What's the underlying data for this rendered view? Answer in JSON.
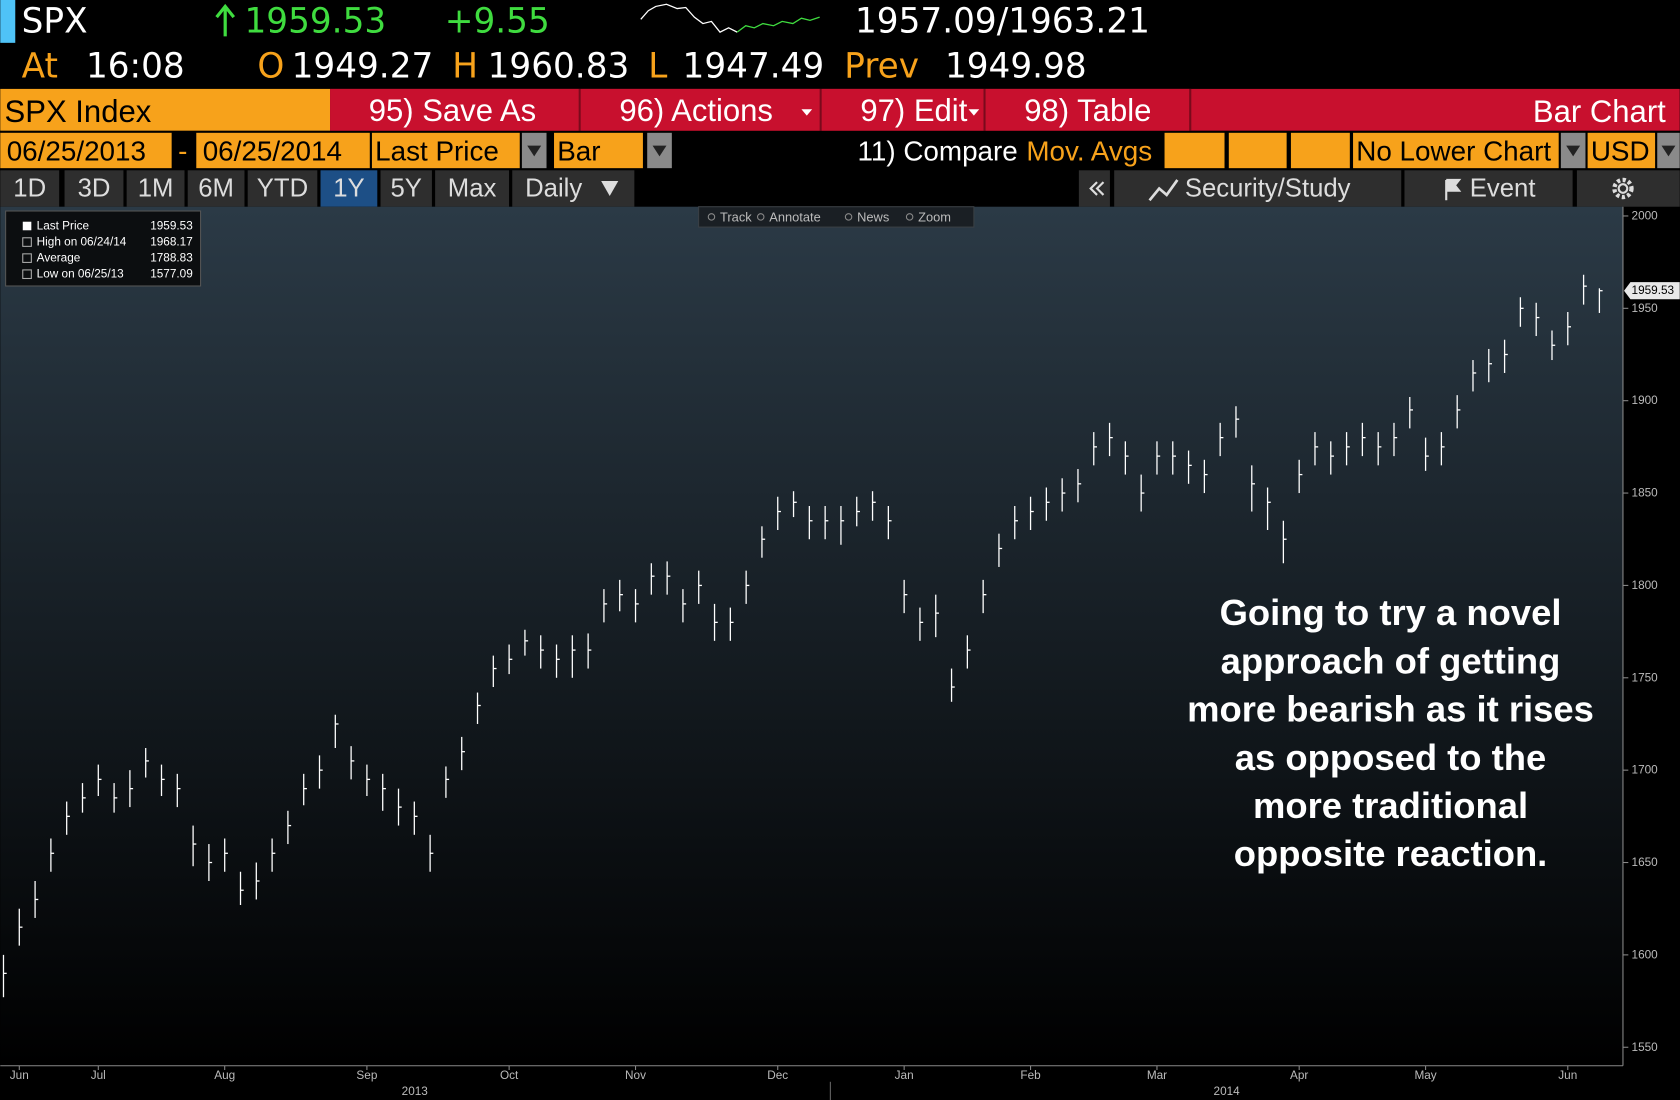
{
  "header": {
    "ticker": "SPX",
    "last": "1959.53",
    "change": "+9.55",
    "bid_ask": "1957.09/1963.21",
    "time_label": "At",
    "time": "16:08",
    "open_label": "O",
    "open": "1949.27",
    "high_label": "H",
    "high": "1960.83",
    "low_label": "L",
    "low": "1947.49",
    "prev_label": "Prev",
    "prev": "1949.98"
  },
  "toolbar": {
    "security": "SPX Index",
    "buttons": [
      "95) Save As",
      "96) Actions",
      "97) Edit",
      "98) Table"
    ],
    "chart_label": "Bar Chart"
  },
  "settings": {
    "start": "06/25/2013",
    "separator": "-",
    "end": "06/25/2014",
    "field": "Last Price",
    "style": "Bar",
    "compare": "11) Compare",
    "mov_avgs": "Mov. Avgs",
    "lower_chart": "No Lower Chart",
    "currency": "USD"
  },
  "periods": [
    "1D",
    "3D",
    "1M",
    "6M",
    "YTD",
    "1Y",
    "5Y",
    "Max"
  ],
  "active_period": "1Y",
  "frequency": "Daily",
  "side_buttons": [
    "Security/Study",
    "Event"
  ],
  "chart_tools": [
    "Track",
    "Annotate",
    "News",
    "Zoom"
  ],
  "legend": [
    {
      "label": "Last Price",
      "value": 1959.53
    },
    {
      "label": "High on 06/24/14",
      "value": 1968.17
    },
    {
      "label": "Average",
      "value": 1788.83
    },
    {
      "label": "Low on 06/25/13",
      "value": 1577.09
    }
  ],
  "annotation": [
    "Going to try a novel",
    "approach of getting",
    "more bearish as it rises",
    "as opposed to the",
    "more traditional",
    "opposite reaction."
  ],
  "chart_data": {
    "type": "ohlc",
    "color": "#ffffff",
    "categories": [
      null,
      "Jun",
      null,
      null,
      null,
      null,
      "Jul",
      null,
      null,
      null,
      null,
      null,
      null,
      null,
      "Aug",
      null,
      null,
      null,
      null,
      null,
      null,
      null,
      null,
      "Sep",
      null,
      null,
      null,
      null,
      null,
      null,
      null,
      null,
      "Oct",
      null,
      null,
      null,
      null,
      null,
      null,
      null,
      "Nov",
      null,
      null,
      null,
      null,
      null,
      null,
      null,
      null,
      "Dec",
      null,
      null,
      null,
      null,
      null,
      null,
      null,
      "Jan",
      null,
      null,
      null,
      null,
      null,
      null,
      null,
      "Feb",
      null,
      null,
      null,
      null,
      null,
      null,
      null,
      "Mar",
      null,
      null,
      null,
      null,
      null,
      null,
      null,
      null,
      "Apr",
      null,
      null,
      null,
      null,
      null,
      null,
      null,
      "May",
      null,
      null,
      null,
      null,
      null,
      null,
      null,
      null,
      "Jun",
      null,
      null
    ],
    "high": [
      1600,
      1625,
      1640,
      1663,
      1683,
      1693,
      1703,
      1693,
      1700,
      1712,
      1703,
      1698,
      1670,
      1660,
      1663,
      1645,
      1650,
      1663,
      1678,
      1698,
      1708,
      1730,
      1713,
      1703,
      1698,
      1690,
      1683,
      1665,
      1702,
      1718,
      1742,
      1762,
      1768,
      1776,
      1773,
      1768,
      1773,
      1774,
      1798,
      1803,
      1798,
      1812,
      1813,
      1798,
      1808,
      1790,
      1788,
      1808,
      1832,
      1848,
      1851,
      1843,
      1843,
      1843,
      1848,
      1851,
      1843,
      1803,
      1788,
      1795,
      1755,
      1773,
      1803,
      1828,
      1843,
      1848,
      1853,
      1858,
      1863,
      1883,
      1888,
      1878,
      1860,
      1878,
      1878,
      1873,
      1868,
      1888,
      1897,
      1865,
      1853,
      1835,
      1868,
      1883,
      1878,
      1883,
      1888,
      1883,
      1888,
      1902,
      1880,
      1883,
      1903,
      1922,
      1928,
      1933,
      1956,
      1953,
      1938,
      1948,
      1968.17,
      1960.83
    ],
    "low": [
      1577.09,
      1605,
      1620,
      1645,
      1665,
      1677,
      1686,
      1677,
      1680,
      1696,
      1686,
      1680,
      1648,
      1640,
      1645,
      1627,
      1630,
      1645,
      1660,
      1681,
      1690,
      1712,
      1695,
      1686,
      1678,
      1670,
      1665,
      1645,
      1685,
      1700,
      1725,
      1745,
      1752,
      1762,
      1755,
      1750,
      1750,
      1755,
      1780,
      1786,
      1780,
      1795,
      1795,
      1780,
      1790,
      1770,
      1770,
      1790,
      1815,
      1830,
      1837,
      1825,
      1825,
      1822,
      1832,
      1835,
      1825,
      1785,
      1770,
      1772,
      1737,
      1755,
      1785,
      1810,
      1825,
      1830,
      1835,
      1840,
      1845,
      1865,
      1870,
      1860,
      1840,
      1860,
      1860,
      1855,
      1850,
      1870,
      1880,
      1840,
      1830,
      1812,
      1850,
      1865,
      1860,
      1865,
      1870,
      1865,
      1870,
      1885,
      1862,
      1865,
      1885,
      1905,
      1910,
      1915,
      1940,
      1935,
      1922,
      1930,
      1952,
      1947.49
    ],
    "close": [
      1590,
      1615,
      1630,
      1655,
      1675,
      1685,
      1695,
      1685,
      1690,
      1705,
      1695,
      1690,
      1660,
      1650,
      1655,
      1635,
      1640,
      1655,
      1670,
      1690,
      1700,
      1725,
      1705,
      1695,
      1690,
      1680,
      1675,
      1655,
      1695,
      1710,
      1735,
      1755,
      1760,
      1770,
      1765,
      1760,
      1765,
      1765,
      1790,
      1795,
      1790,
      1805,
      1805,
      1790,
      1800,
      1780,
      1780,
      1800,
      1825,
      1840,
      1845,
      1835,
      1835,
      1835,
      1840,
      1845,
      1835,
      1795,
      1780,
      1785,
      1745,
      1765,
      1795,
      1820,
      1835,
      1840,
      1845,
      1850,
      1855,
      1875,
      1880,
      1870,
      1850,
      1870,
      1870,
      1865,
      1860,
      1880,
      1890,
      1855,
      1845,
      1825,
      1860,
      1875,
      1870,
      1875,
      1880,
      1875,
      1880,
      1895,
      1870,
      1875,
      1895,
      1915,
      1920,
      1925,
      1950,
      1945,
      1930,
      1940,
      1962,
      1959.53
    ],
    "ylim": [
      1540,
      2005
    ],
    "yticks": [
      1550,
      1600,
      1650,
      1700,
      1750,
      1800,
      1850,
      1900,
      1950,
      2000
    ],
    "year_labels": [
      "2013",
      "2014"
    ]
  }
}
